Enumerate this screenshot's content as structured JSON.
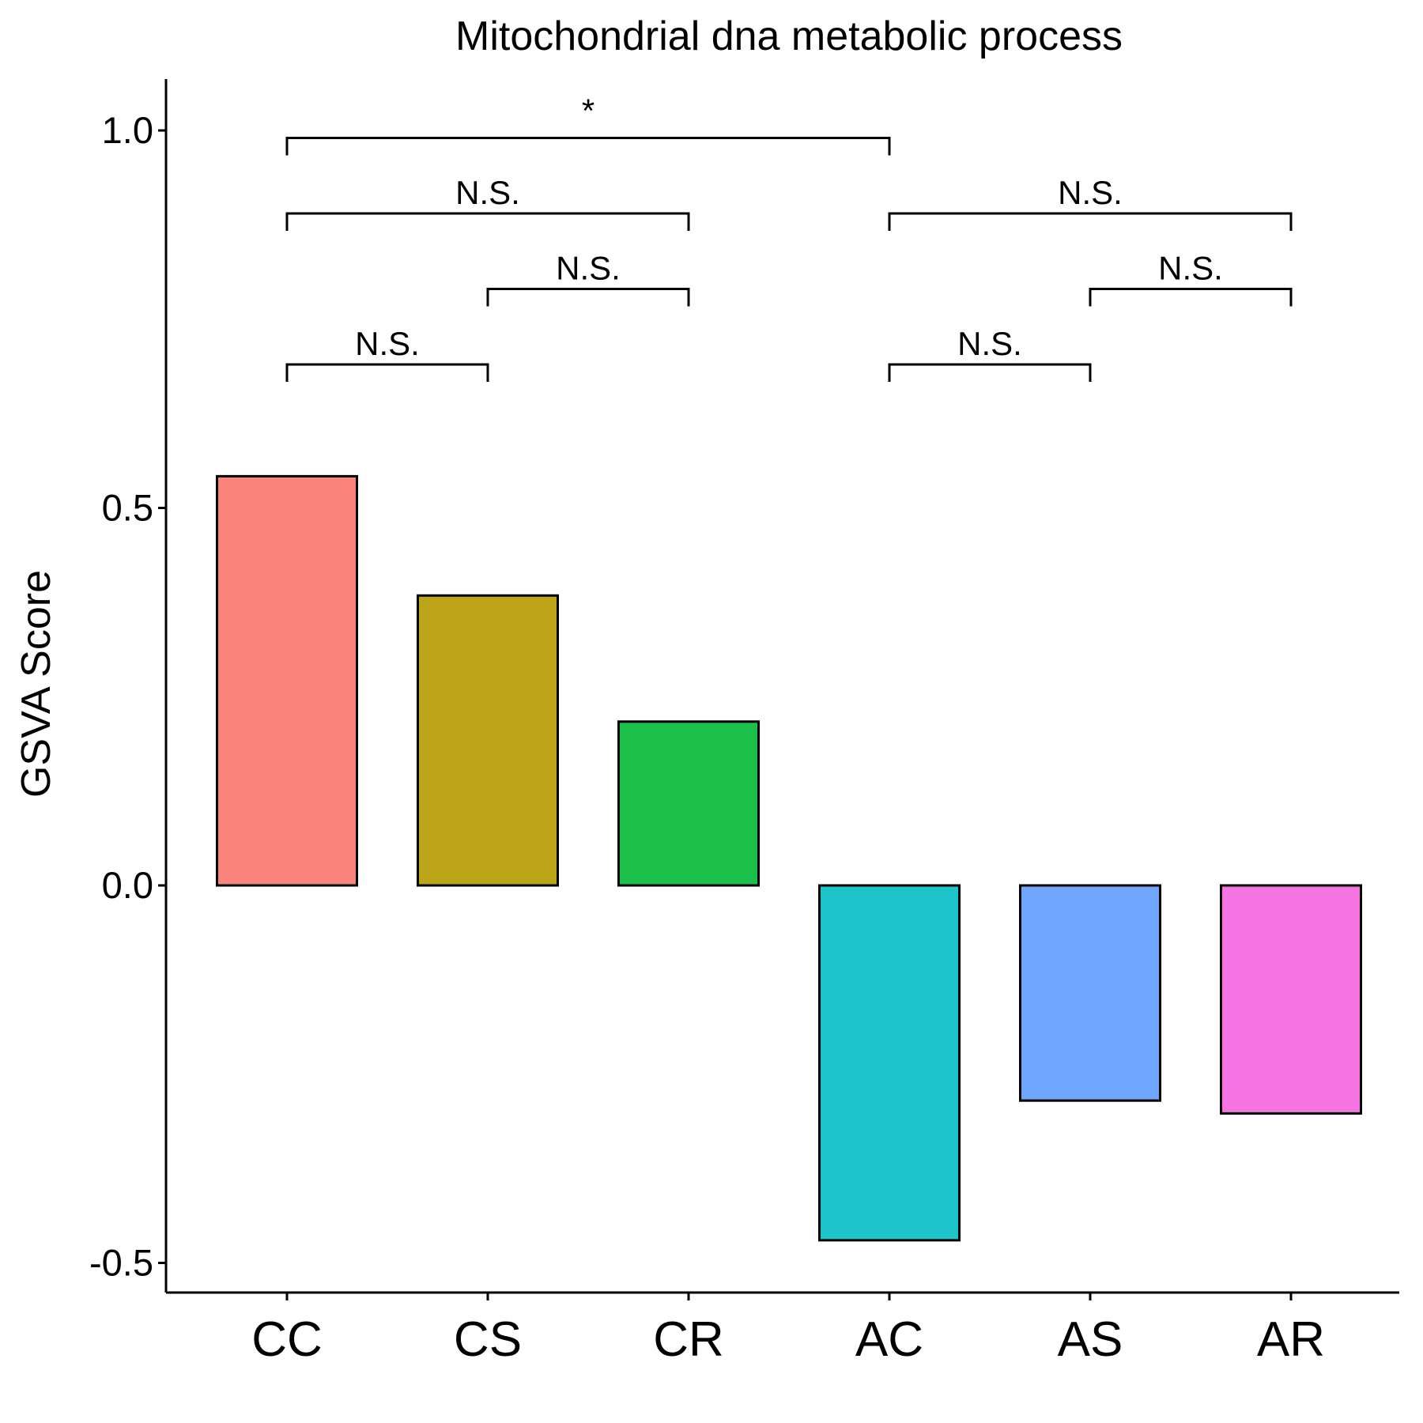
{
  "chart_data": {
    "type": "bar",
    "title": "Mitochondrial dna metabolic process",
    "xlabel": "",
    "ylabel": "GSVA Score",
    "ylim": [
      -0.54,
      1.07
    ],
    "yticks": [
      -0.5,
      0.0,
      0.5,
      1.0
    ],
    "ytick_labels": [
      "-0.5",
      "0.0",
      "0.5",
      "1.0"
    ],
    "categories": [
      "CC",
      "CS",
      "CR",
      "AC",
      "AS",
      "AR"
    ],
    "values": [
      0.542,
      0.384,
      0.217,
      -0.47,
      -0.285,
      -0.302
    ],
    "colors": [
      "#F8847B",
      "#BDA51A",
      "#1CBF4A",
      "#1DC4CA",
      "#70A6FD",
      "#F574E2"
    ],
    "grid": false,
    "legend": "none",
    "comparisons": [
      {
        "from": "CC",
        "to": "CS",
        "y": 0.69,
        "label": "N.S."
      },
      {
        "from": "CS",
        "to": "CR",
        "y": 0.79,
        "label": "N.S."
      },
      {
        "from": "CC",
        "to": "CR",
        "y": 0.89,
        "label": "N.S."
      },
      {
        "from": "CC",
        "to": "AC",
        "y": 0.99,
        "label": "*"
      },
      {
        "from": "AC",
        "to": "AS",
        "y": 0.69,
        "label": "N.S."
      },
      {
        "from": "AS",
        "to": "AR",
        "y": 0.79,
        "label": "N.S."
      },
      {
        "from": "AC",
        "to": "AR",
        "y": 0.89,
        "label": "N.S."
      }
    ]
  }
}
